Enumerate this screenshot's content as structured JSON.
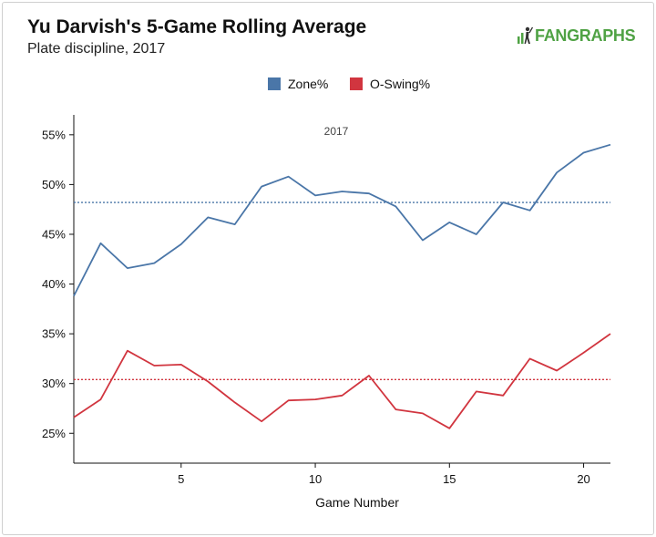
{
  "header": {
    "title": "Yu Darvish's 5-Game Rolling Average",
    "subtitle": "Plate discipline, 2017",
    "logo_text": "FANGRAPHS",
    "logo_color": "#4fa244"
  },
  "chart_data": {
    "type": "line",
    "title": "Yu Darvish's 5-Game Rolling Average",
    "subtitle": "Plate discipline, 2017",
    "panel_label": "2017",
    "xlabel": "Game Number",
    "ylabel": "",
    "xlim": [
      1,
      21
    ],
    "ylim": [
      22,
      57
    ],
    "x_ticks": [
      5,
      10,
      15,
      20
    ],
    "y_ticks": [
      25,
      30,
      35,
      40,
      45,
      50,
      55
    ],
    "y_tick_format": "percent",
    "grid": false,
    "legend_position": "top-center",
    "x": [
      1,
      2,
      3,
      4,
      5,
      6,
      7,
      8,
      9,
      10,
      11,
      12,
      13,
      14,
      15,
      16,
      17,
      18,
      19,
      20,
      21
    ],
    "series": [
      {
        "name": "Zone%",
        "color": "#4a76a8",
        "values": [
          38.8,
          44.1,
          41.6,
          42.1,
          44.0,
          46.7,
          46.0,
          49.8,
          50.8,
          48.9,
          49.3,
          49.1,
          47.8,
          44.4,
          46.2,
          45.0,
          48.2,
          47.4,
          51.2,
          53.2,
          54.0
        ],
        "average": 48.2
      },
      {
        "name": "O-Swing%",
        "color": "#d1353f",
        "values": [
          26.6,
          28.4,
          33.3,
          31.8,
          31.9,
          30.2,
          28.1,
          26.2,
          28.3,
          28.4,
          28.8,
          30.8,
          27.4,
          27.0,
          25.5,
          29.2,
          28.8,
          32.5,
          31.3,
          33.1,
          35.0
        ],
        "average": 30.4
      }
    ]
  }
}
